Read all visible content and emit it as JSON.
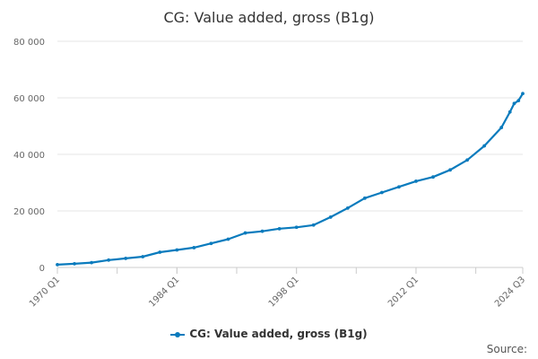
{
  "chart_data": {
    "type": "line",
    "title": "CG: Value added, gross (B1g)",
    "xlabel": "",
    "ylabel": "",
    "ylim": [
      0,
      80000
    ],
    "y_ticks": [
      "0",
      "20 000",
      "40 000",
      "60 000",
      "80 000"
    ],
    "x_tick_labels": [
      "1970 Q1",
      "1984 Q1",
      "1998 Q1",
      "2012 Q1",
      "2024 Q3"
    ],
    "x_range": [
      "1970 Q1",
      "2024 Q3"
    ],
    "grid": true,
    "legend_position": "bottom",
    "series": [
      {
        "name": "CG: Value added, gross (B1g)",
        "color": "#0a7bbd",
        "points": [
          [
            "1970 Q1",
            1000
          ],
          [
            "1972 Q1",
            1300
          ],
          [
            "1974 Q1",
            1700
          ],
          [
            "1976 Q1",
            2600
          ],
          [
            "1978 Q1",
            3200
          ],
          [
            "1980 Q1",
            3800
          ],
          [
            "1982 Q1",
            5400
          ],
          [
            "1984 Q1",
            6200
          ],
          [
            "1986 Q1",
            7000
          ],
          [
            "1988 Q1",
            8500
          ],
          [
            "1990 Q1",
            10000
          ],
          [
            "1992 Q1",
            12200
          ],
          [
            "1994 Q1",
            12800
          ],
          [
            "1996 Q1",
            13700
          ],
          [
            "1998 Q1",
            14200
          ],
          [
            "2000 Q1",
            15000
          ],
          [
            "2002 Q1",
            17800
          ],
          [
            "2004 Q1",
            21000
          ],
          [
            "2006 Q1",
            24500
          ],
          [
            "2008 Q1",
            26500
          ],
          [
            "2010 Q1",
            28500
          ],
          [
            "2012 Q1",
            30500
          ],
          [
            "2014 Q1",
            32000
          ],
          [
            "2016 Q1",
            34500
          ],
          [
            "2018 Q1",
            38000
          ],
          [
            "2020 Q1",
            43000
          ],
          [
            "2022 Q1",
            49500
          ],
          [
            "2023 Q1",
            55000
          ],
          [
            "2023 Q3",
            58000
          ],
          [
            "2024 Q1",
            59000
          ],
          [
            "2024 Q3",
            61500
          ]
        ]
      }
    ]
  },
  "footer": {
    "source_label": "Source:"
  }
}
